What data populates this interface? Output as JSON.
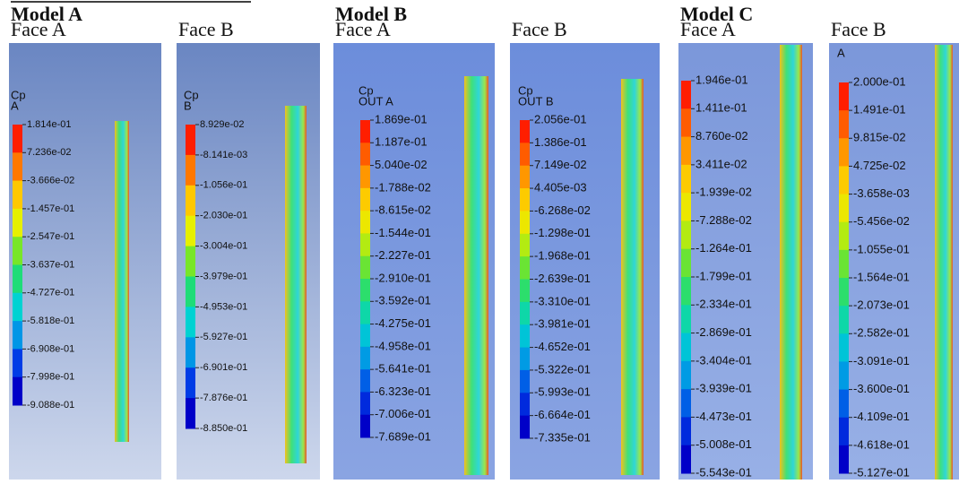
{
  "models": [
    {
      "title": "Model A",
      "faces": [
        {
          "label": "Face A",
          "legend_title": [
            "Cp",
            "A"
          ],
          "legend_labels": [
            "1.814e-01",
            "7.236e-02",
            "-3.666e-02",
            "-1.457e-01",
            "-2.547e-01",
            "-3.637e-01",
            "-4.727e-01",
            "-5.818e-01",
            "-6.908e-01",
            "-7.998e-01",
            "-9.088e-01"
          ]
        },
        {
          "label": "Face B",
          "legend_title": [
            "Cp",
            "B"
          ],
          "legend_labels": [
            "8.929e-02",
            "-8.141e-03",
            "-1.056e-01",
            "-2.030e-01",
            "-3.004e-01",
            "-3.979e-01",
            "-4.953e-01",
            "-5.927e-01",
            "-6.901e-01",
            "-7.876e-01",
            "-8.850e-01"
          ]
        }
      ]
    },
    {
      "title": "Model B",
      "faces": [
        {
          "label": "Face A",
          "legend_title": [
            "Cp",
            "OUT A"
          ],
          "legend_labels": [
            "1.869e-01",
            "1.187e-01",
            "5.040e-02",
            "-1.788e-02",
            "-8.615e-02",
            "-1.544e-01",
            "-2.227e-01",
            "-2.910e-01",
            "-3.592e-01",
            "-4.275e-01",
            "-4.958e-01",
            "-5.641e-01",
            "-6.323e-01",
            "-7.006e-01",
            "-7.689e-01"
          ]
        },
        {
          "label": "Face B",
          "legend_title": [
            "Cp",
            "OUT B"
          ],
          "legend_labels": [
            "2.056e-01",
            "1.386e-01",
            "7.149e-02",
            "4.405e-03",
            "-6.268e-02",
            "-1.298e-01",
            "-1.968e-01",
            "-2.639e-01",
            "-3.310e-01",
            "-3.981e-01",
            "-4.652e-01",
            "-5.322e-01",
            "-5.993e-01",
            "-6.664e-01",
            "-7.335e-01"
          ]
        }
      ]
    },
    {
      "title": "Model C",
      "faces": [
        {
          "label": "Face A",
          "legend_title": [],
          "legend_labels": [
            "1.946e-01",
            "1.411e-01",
            "8.760e-02",
            "3.411e-02",
            "-1.939e-02",
            "-7.288e-02",
            "-1.264e-01",
            "-1.799e-01",
            "-2.334e-01",
            "-2.869e-01",
            "-3.404e-01",
            "-3.939e-01",
            "-4.473e-01",
            "-5.008e-01",
            "-5.543e-01"
          ]
        },
        {
          "label": "Face B",
          "legend_title": [
            "A"
          ],
          "legend_labels": [
            "2.000e-01",
            "1.491e-01",
            "9.815e-02",
            "4.725e-02",
            "-3.658e-03",
            "-5.456e-02",
            "-1.055e-01",
            "-1.564e-01",
            "-2.073e-01",
            "-2.582e-01",
            "-3.091e-01",
            "-3.600e-01",
            "-4.109e-01",
            "-4.618e-01",
            "-5.127e-01"
          ]
        }
      ]
    }
  ]
}
